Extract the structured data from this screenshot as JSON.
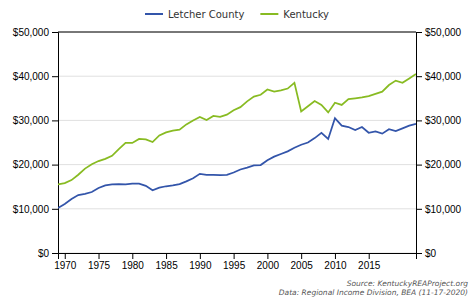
{
  "chart_data": {
    "type": "line",
    "x": [
      1969,
      1970,
      1971,
      1972,
      1973,
      1974,
      1975,
      1976,
      1977,
      1978,
      1979,
      1980,
      1981,
      1982,
      1983,
      1984,
      1985,
      1986,
      1987,
      1988,
      1989,
      1990,
      1991,
      1992,
      1993,
      1994,
      1995,
      1996,
      1997,
      1998,
      1999,
      2000,
      2001,
      2002,
      2003,
      2004,
      2005,
      2006,
      2007,
      2008,
      2009,
      2010,
      2011,
      2012,
      2013,
      2014,
      2015,
      2016,
      2017,
      2018,
      2019,
      2020,
      2021,
      2022
    ],
    "series": [
      {
        "name": "Letcher County",
        "color": "#3355aa",
        "values": [
          10200,
          11100,
          12200,
          13100,
          13400,
          13800,
          14700,
          15300,
          15500,
          15600,
          15500,
          15700,
          15700,
          15200,
          14200,
          14800,
          15100,
          15300,
          15600,
          16200,
          16900,
          17900,
          17700,
          17700,
          17600,
          17700,
          18200,
          18900,
          19300,
          19800,
          19900,
          21000,
          21800,
          22400,
          23000,
          23800,
          24500,
          25000,
          26000,
          27200,
          25800,
          30500,
          28800,
          28500,
          27800,
          28500,
          27200,
          27500,
          27000,
          28000,
          27600,
          28200,
          28800,
          29200
        ]
      },
      {
        "name": "Kentucky",
        "color": "#88bb22",
        "values": [
          15500,
          15800,
          16500,
          17700,
          19100,
          20100,
          20800,
          21300,
          22000,
          23500,
          24900,
          24900,
          25800,
          25700,
          25100,
          26600,
          27300,
          27700,
          27900,
          29100,
          30000,
          30800,
          30100,
          31000,
          30800,
          31300,
          32300,
          33000,
          34300,
          35400,
          35800,
          37000,
          36500,
          36800,
          37200,
          38500,
          32000,
          33200,
          34400,
          33500,
          31800,
          34000,
          33500,
          34800,
          35000,
          35200,
          35500,
          36000,
          36500,
          38000,
          39000,
          38500,
          39500,
          40500
        ]
      }
    ],
    "xlim": [
      1969,
      2022
    ],
    "xticks": [
      1970,
      1975,
      1980,
      1985,
      1990,
      1995,
      2000,
      2005,
      2010,
      2015
    ],
    "ylim": [
      0,
      50000
    ],
    "yticks": [
      {
        "value": 0,
        "label": "$0"
      },
      {
        "value": 10000,
        "label": "$10,000"
      },
      {
        "value": 20000,
        "label": "$20,000"
      },
      {
        "value": 30000,
        "label": "$30,000"
      },
      {
        "value": 40000,
        "label": "$40,000"
      },
      {
        "value": 50000,
        "label": "$50,000"
      }
    ],
    "y2lim": [
      0,
      50000
    ],
    "y2ticks": [
      {
        "value": 0,
        "label": "$0"
      },
      {
        "value": 10000,
        "label": "$10,000"
      },
      {
        "value": 20000,
        "label": "$20,000"
      },
      {
        "value": 30000,
        "label": "$30,000"
      },
      {
        "value": 40000,
        "label": "$40,000"
      },
      {
        "value": 50000,
        "label": "$50,000"
      }
    ],
    "grid": true,
    "legend": "top",
    "annotations": [
      "Source: KentuckyREAProject.org",
      "Data: Regional Income Division, BEA (11-17-2020)"
    ]
  }
}
